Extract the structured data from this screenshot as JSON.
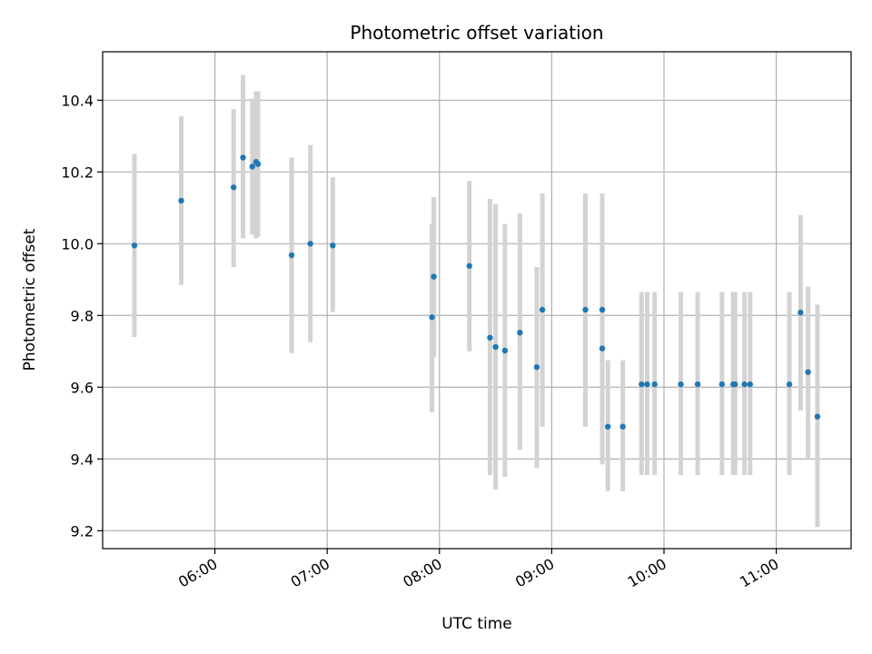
{
  "chart_data": {
    "type": "scatter",
    "title": "Photometric offset variation",
    "xlabel": "UTC time",
    "ylabel": "Photometric offset",
    "x_unit": "time of day (HH:MM, UTC)",
    "xlim": [
      "05:00",
      "11:40"
    ],
    "ylim": [
      9.15,
      10.535
    ],
    "x_ticks": [
      "06:00",
      "07:00",
      "08:00",
      "09:00",
      "10:00",
      "11:00"
    ],
    "y_ticks": [
      9.2,
      9.4,
      9.6,
      9.8,
      10.0,
      10.2,
      10.4
    ],
    "y_tick_labels": [
      "9.2",
      "9.4",
      "9.6",
      "9.8",
      "10.0",
      "10.2",
      "10.4"
    ],
    "grid": true,
    "marker_color": "#1f77b4",
    "errorbar_color": "#d3d3d3",
    "points": [
      {
        "x": "05:17",
        "y": 9.995,
        "lo": 9.74,
        "hi": 10.25
      },
      {
        "x": "05:42",
        "y": 10.12,
        "lo": 9.885,
        "hi": 10.355
      },
      {
        "x": "06:10",
        "y": 10.157,
        "lo": 9.935,
        "hi": 10.375
      },
      {
        "x": "06:15",
        "y": 10.24,
        "lo": 10.015,
        "hi": 10.47
      },
      {
        "x": "06:20",
        "y": 10.215,
        "lo": 10.025,
        "hi": 10.405
      },
      {
        "x": "06:22",
        "y": 10.228,
        "lo": 10.015,
        "hi": 10.425
      },
      {
        "x": "06:23",
        "y": 10.222,
        "lo": 10.02,
        "hi": 10.425
      },
      {
        "x": "06:41",
        "y": 9.968,
        "lo": 9.695,
        "hi": 10.24
      },
      {
        "x": "06:51",
        "y": 10.0,
        "lo": 9.725,
        "hi": 10.275
      },
      {
        "x": "07:03",
        "y": 9.995,
        "lo": 9.81,
        "hi": 10.185
      },
      {
        "x": "07:56",
        "y": 9.795,
        "lo": 9.53,
        "hi": 10.055
      },
      {
        "x": "07:57",
        "y": 9.908,
        "lo": 9.685,
        "hi": 10.13
      },
      {
        "x": "08:16",
        "y": 9.938,
        "lo": 9.7,
        "hi": 10.175
      },
      {
        "x": "08:27",
        "y": 9.738,
        "lo": 9.355,
        "hi": 10.125
      },
      {
        "x": "08:30",
        "y": 9.712,
        "lo": 9.315,
        "hi": 10.11
      },
      {
        "x": "08:35",
        "y": 9.702,
        "lo": 9.35,
        "hi": 10.055
      },
      {
        "x": "08:43",
        "y": 9.752,
        "lo": 9.425,
        "hi": 10.085
      },
      {
        "x": "08:52",
        "y": 9.656,
        "lo": 9.375,
        "hi": 9.935
      },
      {
        "x": "08:55",
        "y": 9.816,
        "lo": 9.49,
        "hi": 10.14
      },
      {
        "x": "09:18",
        "y": 9.816,
        "lo": 9.49,
        "hi": 10.14
      },
      {
        "x": "09:27",
        "y": 9.816,
        "lo": 9.49,
        "hi": 10.14
      },
      {
        "x": "09:27",
        "y": 9.708,
        "lo": 9.385,
        "hi": 10.035
      },
      {
        "x": "09:30",
        "y": 9.49,
        "lo": 9.31,
        "hi": 9.675
      },
      {
        "x": "09:38",
        "y": 9.49,
        "lo": 9.31,
        "hi": 9.675
      },
      {
        "x": "09:48",
        "y": 9.608,
        "lo": 9.355,
        "hi": 9.865
      },
      {
        "x": "09:51",
        "y": 9.608,
        "lo": 9.355,
        "hi": 9.865
      },
      {
        "x": "09:55",
        "y": 9.608,
        "lo": 9.355,
        "hi": 9.865
      },
      {
        "x": "10:09",
        "y": 9.608,
        "lo": 9.355,
        "hi": 9.865
      },
      {
        "x": "10:18",
        "y": 9.608,
        "lo": 9.355,
        "hi": 9.865
      },
      {
        "x": "10:31",
        "y": 9.608,
        "lo": 9.355,
        "hi": 9.865
      },
      {
        "x": "10:37",
        "y": 9.608,
        "lo": 9.355,
        "hi": 9.865
      },
      {
        "x": "10:38",
        "y": 9.608,
        "lo": 9.355,
        "hi": 9.865
      },
      {
        "x": "10:43",
        "y": 9.608,
        "lo": 9.355,
        "hi": 9.865
      },
      {
        "x": "10:46",
        "y": 9.608,
        "lo": 9.355,
        "hi": 9.865
      },
      {
        "x": "11:07",
        "y": 9.608,
        "lo": 9.355,
        "hi": 9.865
      },
      {
        "x": "11:13",
        "y": 9.808,
        "lo": 9.535,
        "hi": 10.08
      },
      {
        "x": "11:17",
        "y": 9.642,
        "lo": 9.4,
        "hi": 9.88
      },
      {
        "x": "11:22",
        "y": 9.518,
        "lo": 9.21,
        "hi": 9.83
      }
    ]
  }
}
